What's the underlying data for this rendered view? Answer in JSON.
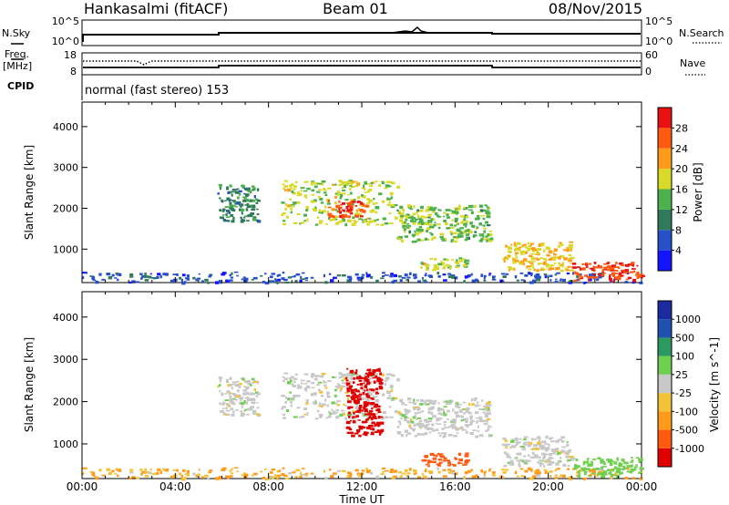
{
  "header": {
    "station": "Hankasalmi (fitACF)",
    "beam": "Beam 01",
    "date": "08/Nov/2015"
  },
  "noise_panel": {
    "left_label": "N.Sky",
    "left_ticks": [
      "10^5",
      "10^0"
    ],
    "right_ticks": [
      "10^5",
      "10^0"
    ],
    "right_label": "N.Search"
  },
  "freq_panel": {
    "left_label_1": "Freq.",
    "left_label_2": "[MHz]",
    "left_ticks": [
      "18",
      "8"
    ],
    "right_ticks": [
      "60",
      "0"
    ],
    "right_label": "Nave"
  },
  "cpid_panel": {
    "label": "CPID",
    "text": "normal (fast stereo) 153"
  },
  "axes": {
    "xlabel": "Time UT",
    "xticks": [
      "00:00",
      "04:00",
      "08:00",
      "12:00",
      "16:00",
      "20:00",
      "00:00"
    ],
    "ylabel": "Slant Range [km]",
    "yticks": [
      "1000",
      "2000",
      "3000",
      "4000"
    ],
    "y_range": [
      180,
      4600
    ],
    "x_range_hours": [
      0,
      24
    ]
  },
  "colors": {
    "power": [
      "#1414ff",
      "#2850c8",
      "#2f7a5a",
      "#4cb04c",
      "#d9d92a",
      "#ff9a1a",
      "#ff5a10",
      "#e81010"
    ],
    "velocity": [
      "#e00000",
      "#ff5a10",
      "#ff9a1a",
      "#f2c238",
      "#c8c8c8",
      "#6fd050",
      "#2a9a60",
      "#2050b0",
      "#1a2aa0"
    ]
  },
  "chart_data": [
    {
      "type": "heatmap",
      "title": "",
      "xlabel": "Time UT",
      "ylabel": "Slant Range [km]",
      "colorbar_label": "Power [dB]",
      "colorbar_ticks": [
        "4",
        "8",
        "12",
        "16",
        "20",
        "24",
        "28"
      ],
      "colorbar_range": [
        0,
        30
      ],
      "x_range_hours": [
        0,
        24
      ],
      "y_range_km": [
        180,
        4600
      ],
      "features": [
        {
          "t_start": 0,
          "t_end": 24,
          "r_start": 200,
          "r_end": 450,
          "level": 6
        },
        {
          "t_start": 5.8,
          "t_end": 7.5,
          "r_start": 1700,
          "r_end": 2600,
          "level": 10
        },
        {
          "t_start": 8.5,
          "t_end": 13.5,
          "r_start": 1600,
          "r_end": 2700,
          "level": 16
        },
        {
          "t_start": 10.5,
          "t_end": 12.2,
          "r_start": 1800,
          "r_end": 2200,
          "level": 26
        },
        {
          "t_start": 13.5,
          "t_end": 17.5,
          "r_start": 1200,
          "r_end": 2100,
          "level": 14
        },
        {
          "t_start": 14.5,
          "t_end": 16.5,
          "r_start": 500,
          "r_end": 800,
          "level": 16
        },
        {
          "t_start": 18,
          "t_end": 21,
          "r_start": 500,
          "r_end": 1200,
          "level": 18
        },
        {
          "t_start": 21,
          "t_end": 24,
          "r_start": 250,
          "r_end": 700,
          "level": 26
        }
      ]
    },
    {
      "type": "heatmap",
      "title": "",
      "xlabel": "Time UT",
      "ylabel": "Slant Range [km]",
      "colorbar_label": "Velocity [m s^-1]",
      "colorbar_ticks": [
        "1000",
        "500",
        "100",
        "25",
        "-25",
        "-100",
        "-500",
        "-1000"
      ],
      "x_range_hours": [
        0,
        24
      ],
      "y_range_km": [
        180,
        4600
      ],
      "features": [
        {
          "t_start": 0,
          "t_end": 24,
          "r_start": 200,
          "r_end": 450,
          "velocity": -50
        },
        {
          "t_start": 5.8,
          "t_end": 7.5,
          "r_start": 1700,
          "r_end": 2600,
          "velocity": 0
        },
        {
          "t_start": 8.5,
          "t_end": 13.5,
          "r_start": 1600,
          "r_end": 2700,
          "velocity": 0
        },
        {
          "t_start": 11.3,
          "t_end": 12.8,
          "r_start": 1200,
          "r_end": 2800,
          "velocity": -600
        },
        {
          "t_start": 13.5,
          "t_end": 17.5,
          "r_start": 1200,
          "r_end": 2100,
          "velocity": 0
        },
        {
          "t_start": 14.5,
          "t_end": 16.5,
          "r_start": 500,
          "r_end": 800,
          "velocity": -200
        },
        {
          "t_start": 18,
          "t_end": 21,
          "r_start": 500,
          "r_end": 1200,
          "velocity": 0
        },
        {
          "t_start": 21,
          "t_end": 24,
          "r_start": 250,
          "r_end": 700,
          "velocity": 60
        }
      ]
    }
  ]
}
